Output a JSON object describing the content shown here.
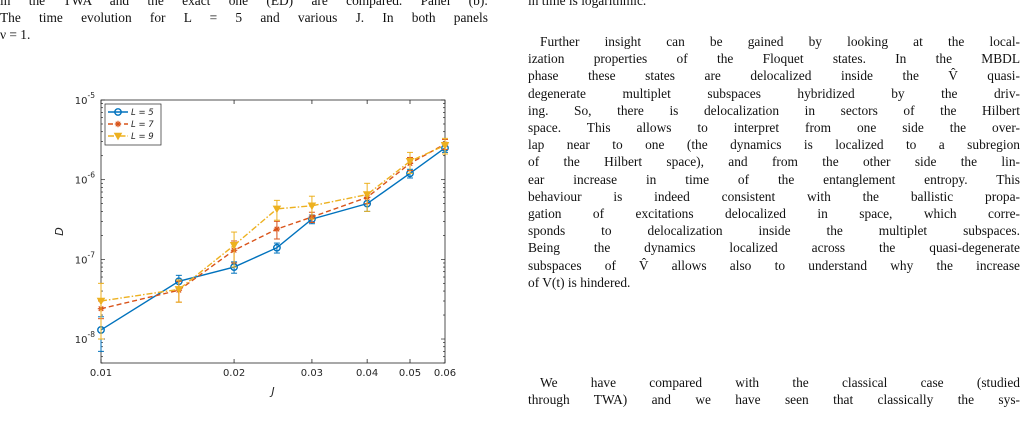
{
  "caption": {
    "lines": [
      "in the TWA and the exact one (ED) are compared. Panel (b):",
      "The time evolution for L = 5 and various J. In both panels",
      "ν = 1."
    ]
  },
  "body": {
    "p1_lines": [
      "in time is logarithmic."
    ],
    "p2_lines": [
      "Further insight can be gained by looking at the local-",
      "ization properties of the Floquet states. In the MBDL",
      "phase these states are delocalized inside the V̂ quasi-",
      "degenerate multiplet subspaces hybridized by the driv-",
      "ing. So, there is delocalization in sectors of the Hilbert",
      "space. This allows to interpret from one side the over-",
      "lap near to one (the dynamics is localized to a subregion",
      "of the Hilbert space), and from the other side the lin-",
      "ear increase in time of the entanglement entropy. This",
      "behaviour is indeed consistent with the ballistic propa-",
      "gation of excitations delocalized in space, which corre-",
      "sponds to delocalization inside the multiplet subspaces.",
      "Being the dynamics localized across the quasi-degenerate",
      "subspaces of V̂ allows also to understand why the increase",
      "of V(t) is hindered."
    ],
    "p3_lines": [
      "We have compared with the classical case (studied",
      "through TWA) and we have seen that classically the sys-"
    ]
  },
  "chart_data": {
    "type": "line",
    "xlabel": "J",
    "ylabel": "D",
    "xscale": "log",
    "yscale": "log",
    "xlim": [
      0.01,
      0.06
    ],
    "ylim": [
      5e-09,
      1e-05
    ],
    "x_ticks": [
      0.01,
      0.02,
      0.03,
      0.04,
      0.05,
      0.06
    ],
    "x_tick_labels": [
      "0.01",
      "0.02",
      "0.03",
      "0.04",
      "0.05",
      "0.06"
    ],
    "y_ticks": [
      1e-08,
      1e-07,
      1e-06,
      1e-05
    ],
    "y_tick_labels": [
      {
        "base": "10",
        "exp": "-8"
      },
      {
        "base": "10",
        "exp": "-7"
      },
      {
        "base": "10",
        "exp": "-6"
      },
      {
        "base": "10",
        "exp": "-5"
      }
    ],
    "legend_position": "top-left",
    "series": [
      {
        "name": "L = 5",
        "color": "#0072BD",
        "dash": "solid",
        "marker": "circle",
        "x": [
          0.01,
          0.015,
          0.02,
          0.025,
          0.03,
          0.04,
          0.05,
          0.06
        ],
        "y": [
          1.3e-08,
          5.3e-08,
          8e-08,
          1.4e-07,
          3.2e-07,
          5e-07,
          1.2e-06,
          2.5e-06
        ],
        "err": [
          6e-09,
          1e-08,
          1.3e-08,
          2e-08,
          4e-08,
          1e-07,
          1.5e-07,
          3e-07
        ]
      },
      {
        "name": "L = 7",
        "color": "#D95319",
        "dash": "dashed",
        "marker": "star",
        "x": [
          0.01,
          0.015,
          0.02,
          0.025,
          0.03,
          0.04,
          0.05,
          0.06
        ],
        "y": [
          2.4e-08,
          4.1e-08,
          1.3e-07,
          2.4e-07,
          3.4e-07,
          6e-07,
          1.6e-06,
          2.8e-06
        ],
        "err": [
          6e-09,
          1.2e-08,
          4e-08,
          6e-08,
          5e-08,
          1e-07,
          3e-07,
          4e-07
        ]
      },
      {
        "name": "L = 9",
        "color": "#EDB120",
        "dash": "dashdot",
        "marker": "triangle-down",
        "x": [
          0.01,
          0.015,
          0.02,
          0.025,
          0.03,
          0.04,
          0.05,
          0.06
        ],
        "y": [
          3e-08,
          4.2e-08,
          1.5e-07,
          4.3e-07,
          4.7e-07,
          6.5e-07,
          1.7e-06,
          2.7e-06
        ],
        "err": [
          2e-08,
          1.3e-08,
          7e-08,
          1.2e-07,
          1.5e-07,
          2.5e-07,
          5e-07,
          6e-07
        ]
      }
    ]
  }
}
